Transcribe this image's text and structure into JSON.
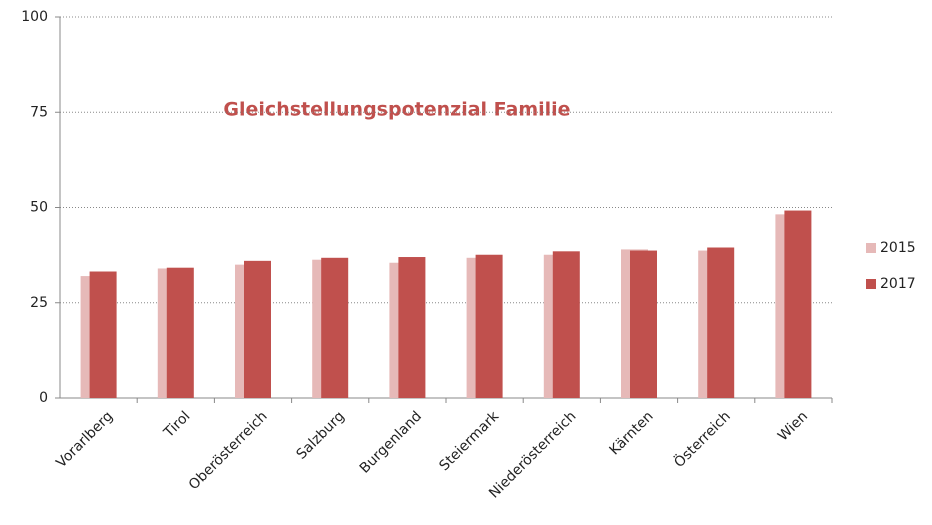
{
  "chart_data": {
    "type": "bar",
    "title": "Gleichstellungspotenzial Familie",
    "categories": [
      "Vorarlberg",
      "Tirol",
      "Oberösterreich",
      "Salzburg",
      "Burgenland",
      "Steiermark",
      "Niederösterreich",
      "Kärnten",
      "Österreich",
      "Wien"
    ],
    "series": [
      {
        "name": "2015",
        "color": "#e6b9b8",
        "values": [
          32,
          34,
          35,
          36.3,
          35.5,
          36.8,
          37.6,
          39,
          38.7,
          48.2
        ]
      },
      {
        "name": "2017",
        "color": "#c0504d",
        "values": [
          33.2,
          34.2,
          36,
          36.8,
          37,
          37.6,
          38.5,
          38.7,
          39.5,
          49.2
        ]
      }
    ],
    "ylim": [
      0,
      100
    ],
    "yticks": [
      0,
      25,
      50,
      75,
      100
    ],
    "grid": true,
    "legend": "right"
  }
}
